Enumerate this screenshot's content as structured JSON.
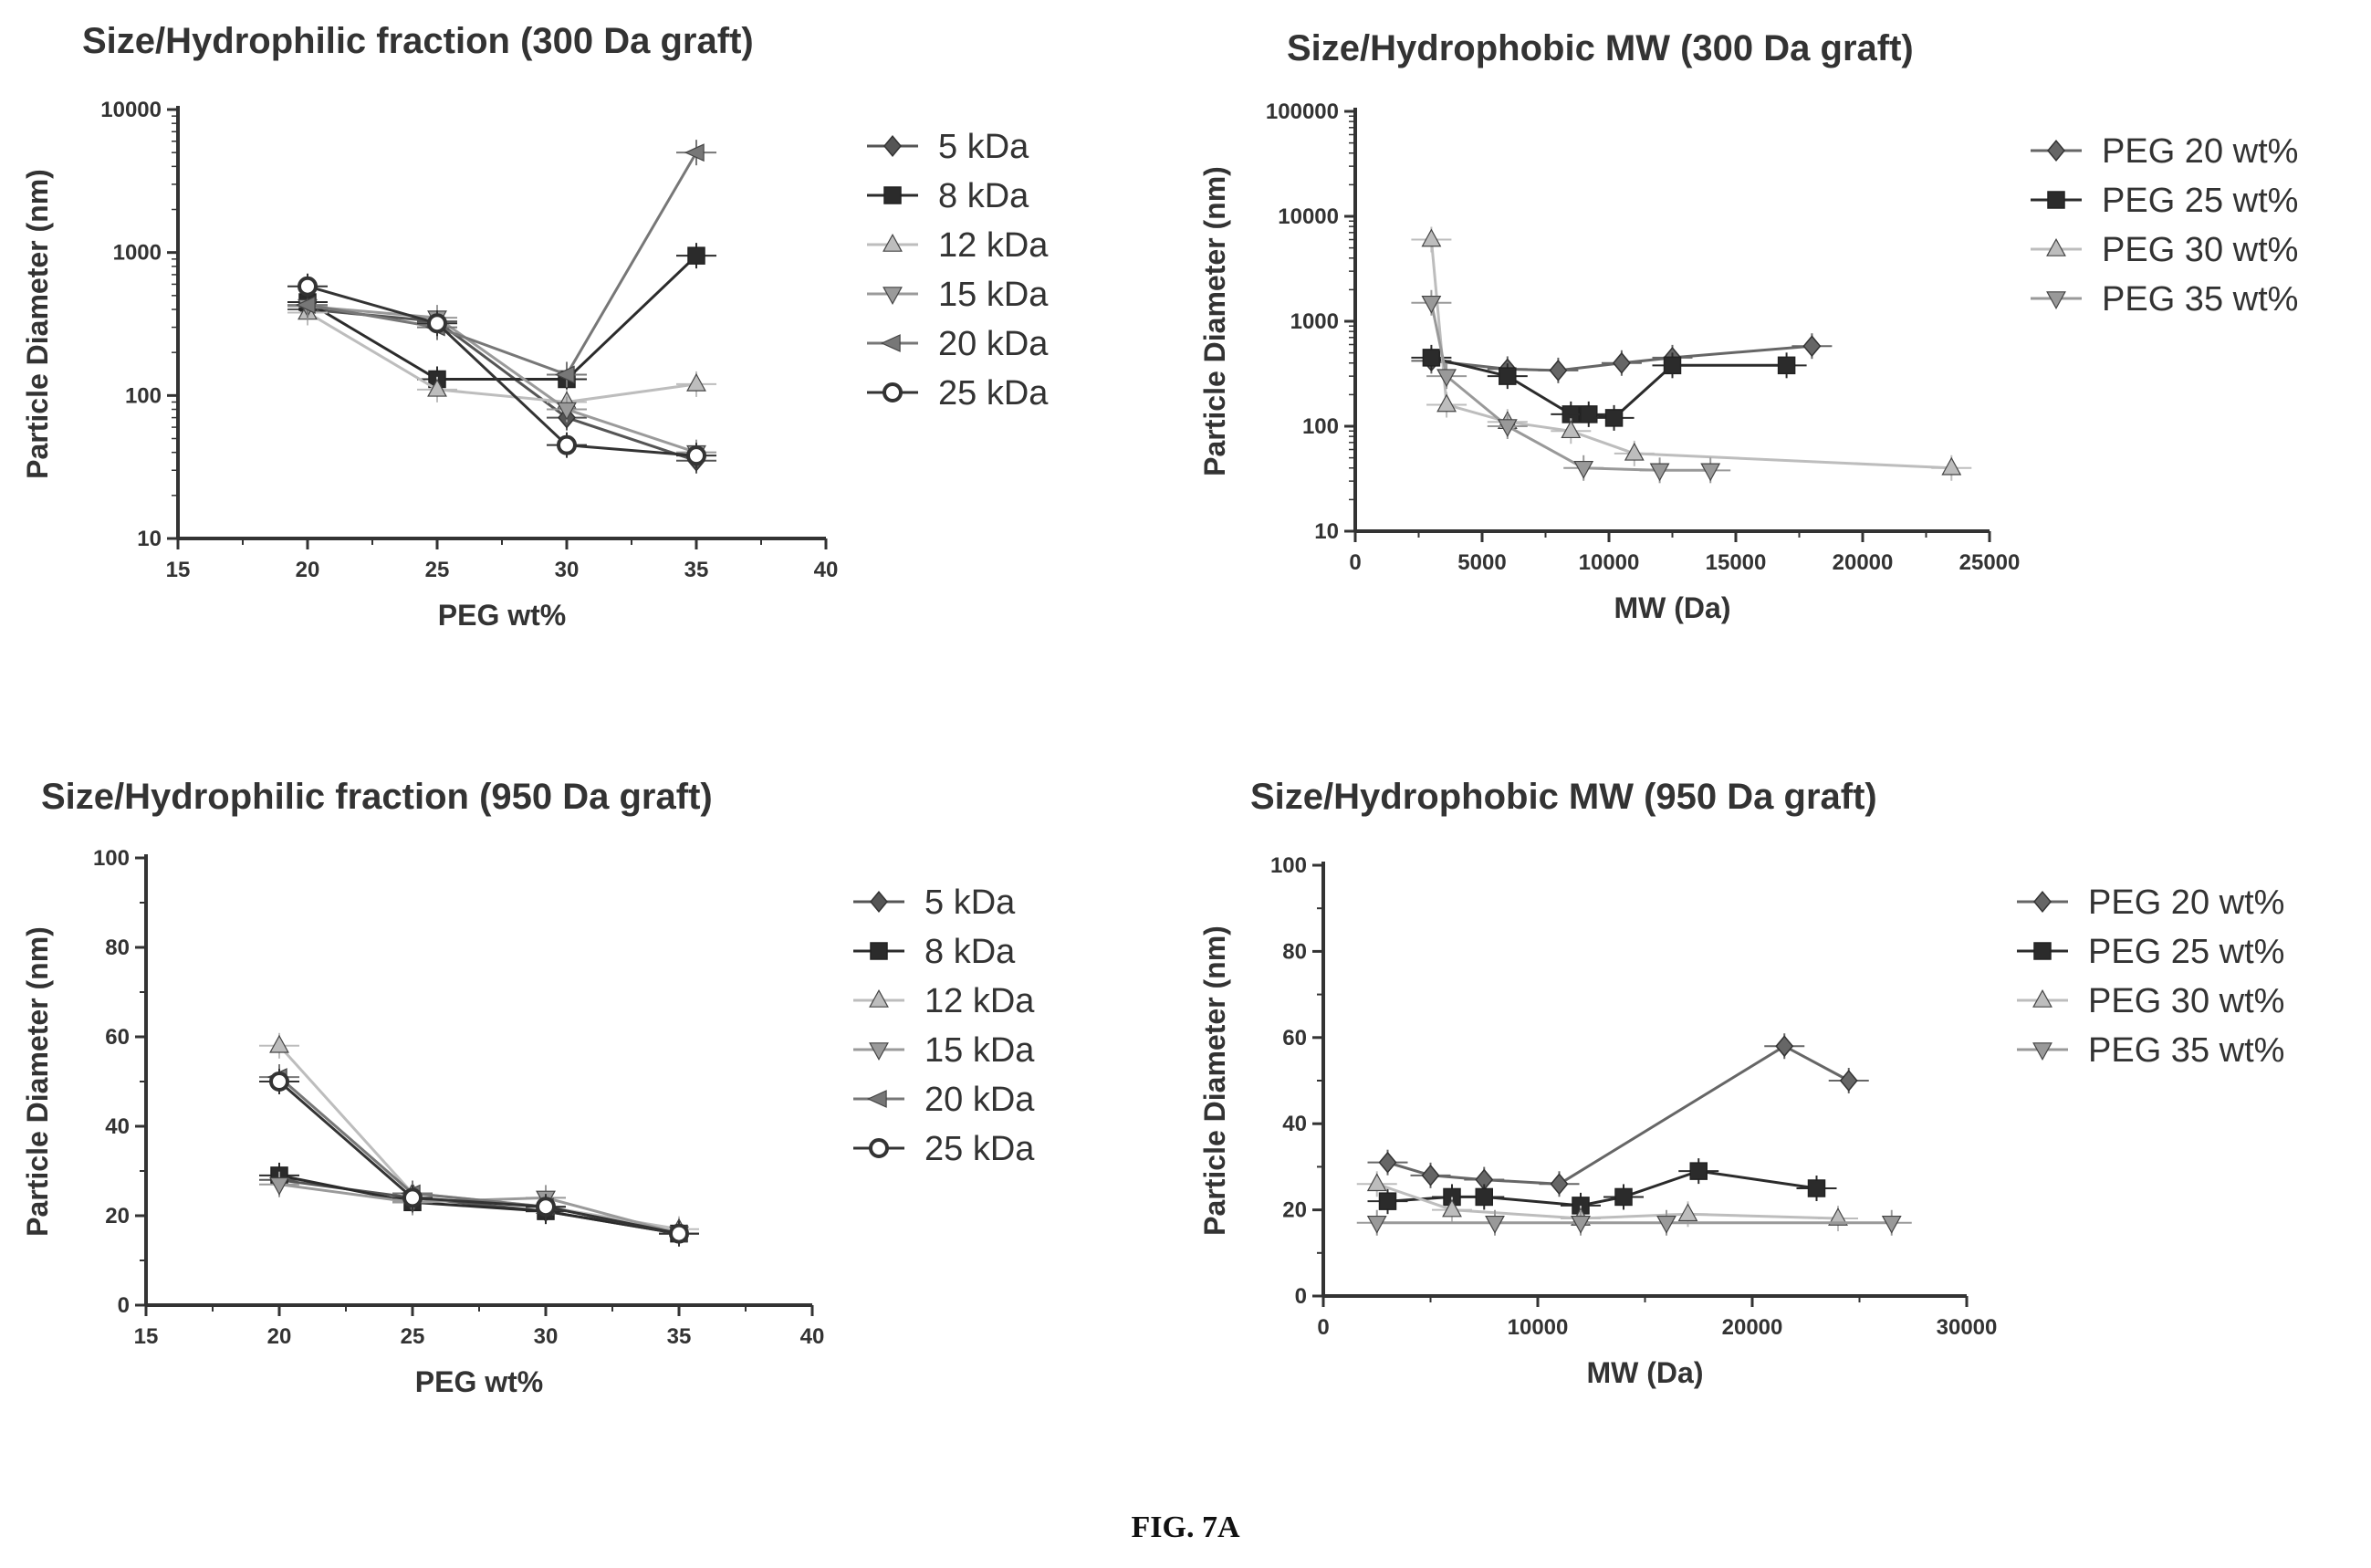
{
  "figure_caption": "FIG. 7A",
  "colors": {
    "5 kDa": "#555555",
    "8 kDa": "#2b2b2b",
    "12 kDa": "#bdbdbd",
    "15 kDa": "#9a9a9a",
    "20 kDa": "#777777",
    "25 kDa": "#333333",
    "PEG 20 wt%": "#666666",
    "PEG 25 wt%": "#2b2b2b",
    "PEG 30 wt%": "#bdbdbd",
    "PEG 35 wt%": "#999999"
  },
  "chart_data": [
    {
      "type": "line",
      "title": "Size/Hydrophilic fraction (300 Da graft)",
      "xlabel": "PEG wt%",
      "ylabel": "Particle Diameter  (nm)",
      "xlim": [
        15,
        40
      ],
      "ylim": [
        10,
        10000
      ],
      "yscale": "log",
      "xticks": [
        "15",
        "20",
        "25",
        "30",
        "35",
        "40"
      ],
      "yticks": [
        "10",
        "100",
        "1000",
        "10000"
      ],
      "legend": "right",
      "series": [
        {
          "name": "5 kDa",
          "marker": "diamond",
          "x": [
            20,
            25,
            30,
            35
          ],
          "y": [
            400,
            330,
            70,
            35
          ]
        },
        {
          "name": "8 kDa",
          "marker": "square",
          "x": [
            20,
            25,
            30,
            35
          ],
          "y": [
            450,
            130,
            130,
            950
          ]
        },
        {
          "name": "12 kDa",
          "marker": "triangle",
          "x": [
            20,
            25,
            30,
            35
          ],
          "y": [
            380,
            110,
            90,
            120
          ]
        },
        {
          "name": "15 kDa",
          "marker": "triangle-down",
          "x": [
            20,
            25,
            30,
            35
          ],
          "y": [
            420,
            350,
            80,
            40
          ]
        },
        {
          "name": "20 kDa",
          "marker": "triangle-left",
          "x": [
            20,
            25,
            30,
            35
          ],
          "y": [
            430,
            300,
            140,
            5000
          ]
        },
        {
          "name": "25 kDa",
          "marker": "circle",
          "x": [
            20,
            25,
            30,
            35
          ],
          "y": [
            580,
            320,
            45,
            38
          ]
        }
      ]
    },
    {
      "type": "line",
      "title": "Size/Hydrophobic MW (300 Da graft)",
      "xlabel": "MW (Da)",
      "ylabel": "Particle Diameter  (nm)",
      "xlim": [
        0,
        25000
      ],
      "ylim": [
        10,
        100000
      ],
      "yscale": "log",
      "xticks": [
        "0",
        "5000",
        "10000",
        "15000",
        "20000",
        "25000"
      ],
      "yticks": [
        "10",
        "100",
        "1000",
        "10000",
        "100000"
      ],
      "legend": "right",
      "series": [
        {
          "name": "PEG 20 wt%",
          "marker": "diamond",
          "x": [
            3000,
            6000,
            8000,
            10500,
            12500,
            18000
          ],
          "y": [
            420,
            350,
            340,
            400,
            450,
            580
          ]
        },
        {
          "name": "PEG 25 wt%",
          "marker": "square",
          "x": [
            3000,
            6000,
            8500,
            9200,
            10200,
            12500,
            17000
          ],
          "y": [
            450,
            300,
            130,
            130,
            120,
            380,
            380
          ]
        },
        {
          "name": "PEG 30 wt%",
          "marker": "triangle",
          "x": [
            3000,
            3600,
            6000,
            8500,
            11000,
            23500
          ],
          "y": [
            6000,
            160,
            110,
            90,
            55,
            40
          ]
        },
        {
          "name": "PEG 35 wt%",
          "marker": "triangle-down",
          "x": [
            3000,
            3600,
            6000,
            9000,
            12000,
            14000
          ],
          "y": [
            1500,
            300,
            100,
            40,
            38,
            38
          ]
        }
      ]
    },
    {
      "type": "line",
      "title": "Size/Hydrophilic fraction (950 Da graft)",
      "xlabel": "PEG wt%",
      "ylabel": "Particle Diameter  (nm)",
      "xlim": [
        15,
        40
      ],
      "ylim": [
        0,
        100
      ],
      "yscale": "linear",
      "xticks": [
        "15",
        "20",
        "25",
        "30",
        "35",
        "40"
      ],
      "yticks": [
        "0",
        "20",
        "40",
        "60",
        "80",
        "100"
      ],
      "legend": "right",
      "series": [
        {
          "name": "5 kDa",
          "marker": "diamond",
          "x": [
            20,
            25,
            30,
            35
          ],
          "y": [
            28,
            24,
            21,
            16
          ]
        },
        {
          "name": "8 kDa",
          "marker": "square",
          "x": [
            20,
            25,
            30,
            35
          ],
          "y": [
            29,
            23,
            21,
            16
          ]
        },
        {
          "name": "12 kDa",
          "marker": "triangle",
          "x": [
            20,
            25,
            30,
            35
          ],
          "y": [
            58,
            25,
            22,
            17
          ]
        },
        {
          "name": "15 kDa",
          "marker": "triangle-down",
          "x": [
            20,
            25,
            30,
            35
          ],
          "y": [
            27,
            23,
            24,
            16
          ]
        },
        {
          "name": "20 kDa",
          "marker": "triangle-left",
          "x": [
            20,
            25,
            30,
            35
          ],
          "y": [
            51,
            25,
            22,
            16
          ]
        },
        {
          "name": "25 kDa",
          "marker": "circle",
          "x": [
            20,
            25,
            30,
            35
          ],
          "y": [
            50,
            24,
            22,
            16
          ]
        }
      ]
    },
    {
      "type": "line",
      "title": "Size/Hydrophobic MW (950 Da graft)",
      "xlabel": "MW (Da)",
      "ylabel": "Particle Diameter  (nm)",
      "xlim": [
        0,
        30000
      ],
      "ylim": [
        0,
        100
      ],
      "yscale": "linear",
      "xticks": [
        "0",
        "10000",
        "20000",
        "30000"
      ],
      "yticks": [
        "0",
        "20",
        "40",
        "60",
        "80",
        "100"
      ],
      "legend": "right",
      "series": [
        {
          "name": "PEG 20 wt%",
          "marker": "diamond",
          "x": [
            3000,
            5000,
            7500,
            11000,
            21500,
            24500
          ],
          "y": [
            31,
            28,
            27,
            26,
            58,
            50
          ]
        },
        {
          "name": "PEG 25 wt%",
          "marker": "square",
          "x": [
            3000,
            6000,
            7500,
            12000,
            14000,
            17500,
            23000
          ],
          "y": [
            22,
            23,
            23,
            21,
            23,
            29,
            25
          ]
        },
        {
          "name": "PEG 30 wt%",
          "marker": "triangle",
          "x": [
            2500,
            6000,
            12000,
            17000,
            24000
          ],
          "y": [
            26,
            20,
            18,
            19,
            18
          ]
        },
        {
          "name": "PEG 35 wt%",
          "marker": "triangle-down",
          "x": [
            2500,
            8000,
            12000,
            16000,
            26500
          ],
          "y": [
            17,
            17,
            17,
            17,
            17
          ]
        }
      ]
    }
  ]
}
